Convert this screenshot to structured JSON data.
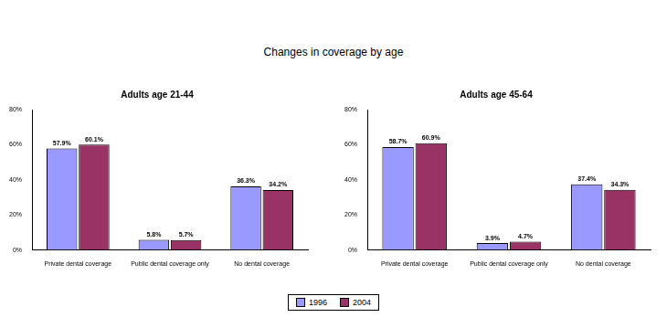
{
  "title": "Changes in coverage by age",
  "chart_data": [
    {
      "type": "bar",
      "title": "Adults age 21-44",
      "categories": [
        "Private dental coverage",
        "Public dental coverage only",
        "No dental coverage"
      ],
      "series": [
        {
          "name": "1996",
          "color": "#9999ff",
          "values": [
            57.9,
            5.8,
            36.3
          ],
          "value_labels": [
            "57.9%",
            "5.8%",
            "36.3%"
          ]
        },
        {
          "name": "2004",
          "color": "#993366",
          "values": [
            60.1,
            5.7,
            34.2
          ],
          "value_labels": [
            "60.1%",
            "5.7%",
            "34.2%"
          ]
        }
      ],
      "ylim": [
        0,
        80
      ],
      "yticks": [
        {
          "value": 0,
          "label": "0%"
        },
        {
          "value": 20,
          "label": "20%"
        },
        {
          "value": 40,
          "label": "40%"
        },
        {
          "value": 60,
          "label": "60%"
        },
        {
          "value": 80,
          "label": "80%"
        }
      ],
      "grid": false,
      "data_labels": true,
      "legend": "bottom"
    },
    {
      "type": "bar",
      "title": "Adults age 45-64",
      "categories": [
        "Private dental coverage",
        "Public dental coverage only",
        "No dental coverage"
      ],
      "series": [
        {
          "name": "1996",
          "color": "#9999ff",
          "values": [
            58.7,
            3.9,
            37.4
          ],
          "value_labels": [
            "58.7%",
            "3.9%",
            "37.4%"
          ]
        },
        {
          "name": "2004",
          "color": "#993366",
          "values": [
            60.9,
            4.7,
            34.3
          ],
          "value_labels": [
            "60.9%",
            "4.7%",
            "34.3%"
          ]
        }
      ],
      "ylim": [
        0,
        80
      ],
      "yticks": [
        {
          "value": 0,
          "label": "0%"
        },
        {
          "value": 20,
          "label": "20%"
        },
        {
          "value": 40,
          "label": "40%"
        },
        {
          "value": 60,
          "label": "60%"
        },
        {
          "value": 80,
          "label": "80%"
        }
      ],
      "grid": false,
      "data_labels": true,
      "legend": "bottom"
    }
  ]
}
